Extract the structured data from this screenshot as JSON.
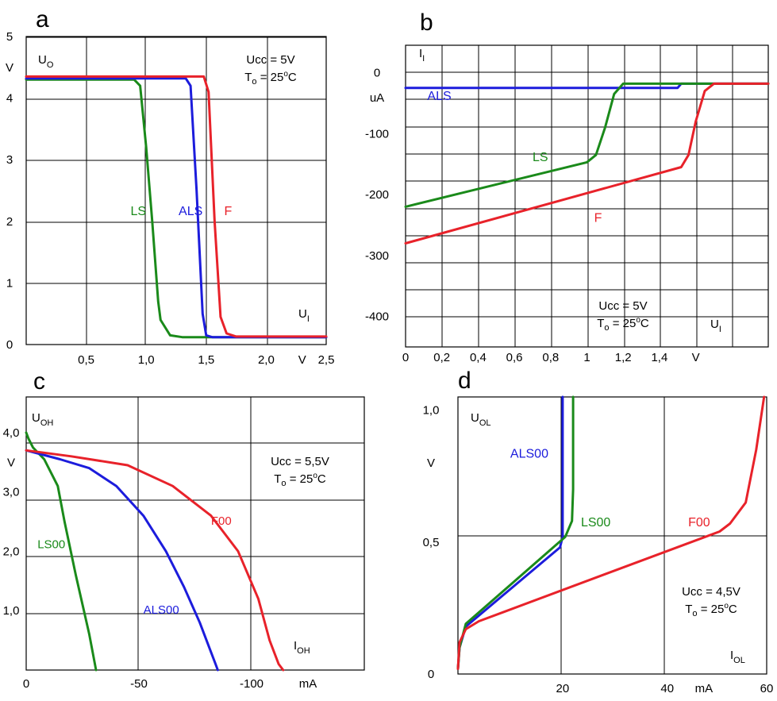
{
  "panels": {
    "a": {
      "letter": "a"
    },
    "b": {
      "letter": "b"
    },
    "c": {
      "letter": "c"
    },
    "d": {
      "letter": "d"
    }
  },
  "colors": {
    "LS": "#1a8a1a",
    "ALS": "#1c1cdc",
    "F": "#e8222a"
  },
  "chart_data": [
    {
      "id": "a",
      "type": "line",
      "ylabel": "U",
      "ylabel_sub": "O",
      "yunit": "V",
      "xlabel": "U",
      "xlabel_sub": "I",
      "xunit": "V",
      "conditions": [
        "Ucc = 5V",
        "T",
        "o",
        " = 25",
        "o",
        "C"
      ],
      "xlim": [
        0,
        2.5
      ],
      "ylim": [
        0,
        5
      ],
      "x_ticks": [
        "0,5",
        "1,0",
        "1,5",
        "2,0",
        "V",
        "2,5"
      ],
      "x_tick_values": [
        0.5,
        1.0,
        1.5,
        2.0,
        2.3,
        2.5
      ],
      "y_ticks": [
        "0",
        "1",
        "2",
        "3",
        "4",
        "V",
        "5"
      ],
      "y_tick_values": [
        0,
        1,
        2,
        3,
        4,
        4.5,
        5
      ],
      "grid": true,
      "series": [
        {
          "name": "LS",
          "color_key": "LS",
          "points": [
            [
              0,
              4.3
            ],
            [
              0.9,
              4.3
            ],
            [
              0.95,
              4.2
            ],
            [
              1.0,
              3.2
            ],
            [
              1.05,
              2.0
            ],
            [
              1.1,
              0.7
            ],
            [
              1.12,
              0.4
            ],
            [
              1.2,
              0.15
            ],
            [
              1.3,
              0.12
            ],
            [
              2.5,
              0.12
            ]
          ]
        },
        {
          "name": "ALS",
          "color_key": "ALS",
          "points": [
            [
              0,
              4.32
            ],
            [
              1.33,
              4.32
            ],
            [
              1.37,
              4.2
            ],
            [
              1.42,
              2.5
            ],
            [
              1.47,
              0.5
            ],
            [
              1.5,
              0.15
            ],
            [
              1.55,
              0.12
            ],
            [
              2.5,
              0.12
            ]
          ]
        },
        {
          "name": "F",
          "color_key": "F",
          "points": [
            [
              0,
              4.35
            ],
            [
              1.48,
              4.35
            ],
            [
              1.52,
              4.1
            ],
            [
              1.57,
              2.0
            ],
            [
              1.62,
              0.45
            ],
            [
              1.67,
              0.18
            ],
            [
              1.75,
              0.13
            ],
            [
              2.5,
              0.13
            ]
          ]
        }
      ],
      "labels": [
        {
          "text": "LS",
          "color_key": "LS",
          "x": 0.87,
          "y": 2.1
        },
        {
          "text": "ALS",
          "color_key": "ALS",
          "x": 1.27,
          "y": 2.1
        },
        {
          "text": "F",
          "color_key": "F",
          "x": 1.65,
          "y": 2.1
        }
      ]
    },
    {
      "id": "b",
      "type": "line",
      "ylabel": "I",
      "ylabel_sub": "I",
      "yunit": "uA",
      "xlabel": "U",
      "xlabel_sub": "I",
      "xunit": "V",
      "conditions": [
        "Ucc = 5V",
        "T",
        "o",
        " = 25",
        "o",
        "C"
      ],
      "xlim": [
        0,
        2.0
      ],
      "ylim": [
        -450,
        45
      ],
      "x_ticks": [
        "0",
        "0,2",
        "0,4",
        "0,6",
        "0,8",
        "1",
        "1,2",
        "1,4",
        "V"
      ],
      "x_tick_values": [
        0,
        0.2,
        0.4,
        0.6,
        0.8,
        1.0,
        1.2,
        1.4,
        1.6
      ],
      "y_ticks": [
        "0",
        "-100",
        "-200",
        "-300",
        "-400"
      ],
      "y_tick_values": [
        0,
        -100,
        -200,
        -300,
        -400
      ],
      "grid": true,
      "series": [
        {
          "name": "ALS",
          "color_key": "ALS",
          "points": [
            [
              0,
              -25
            ],
            [
              1.5,
              -25
            ],
            [
              1.52,
              -18
            ],
            [
              2.0,
              -18
            ]
          ]
        },
        {
          "name": "LS",
          "color_key": "LS",
          "points": [
            [
              0,
              -220
            ],
            [
              1.0,
              -147
            ],
            [
              1.05,
              -135
            ],
            [
              1.1,
              -90
            ],
            [
              1.15,
              -35
            ],
            [
              1.2,
              -18
            ],
            [
              2.0,
              -18
            ]
          ]
        },
        {
          "name": "F",
          "color_key": "F",
          "points": [
            [
              0,
              -280
            ],
            [
              1.52,
              -155
            ],
            [
              1.56,
              -135
            ],
            [
              1.6,
              -80
            ],
            [
              1.65,
              -30
            ],
            [
              1.7,
              -18
            ],
            [
              2.0,
              -18
            ]
          ]
        }
      ],
      "labels": [
        {
          "text": "ALS",
          "color_key": "ALS",
          "x": 0.12,
          "y": -45
        },
        {
          "text": "LS",
          "color_key": "LS",
          "x": 0.7,
          "y": -145
        },
        {
          "text": "F",
          "color_key": "F",
          "x": 1.04,
          "y": -245
        }
      ]
    },
    {
      "id": "c",
      "type": "line",
      "ylabel": "U",
      "ylabel_sub": "OH",
      "yunit": "V",
      "xlabel": "I",
      "xlabel_sub": "OH",
      "xunit": "mA",
      "conditions": [
        "Ucc = 5,5V",
        "T",
        "o",
        " = 25",
        "o",
        "C"
      ],
      "xlim": [
        0,
        -150
      ],
      "ylim": [
        0,
        4.6
      ],
      "x_ticks": [
        "0",
        "-50",
        "-100",
        "mA"
      ],
      "x_tick_values": [
        0,
        -50,
        -100,
        -125
      ],
      "y_ticks": [
        "1,0",
        "2,0",
        "3,0",
        "V",
        "4,0"
      ],
      "y_tick_values": [
        1,
        2,
        3,
        3.5,
        4
      ],
      "grid": true,
      "series": [
        {
          "name": "LS00",
          "color_key": "LS",
          "points": [
            [
              0,
              4.0
            ],
            [
              -1,
              3.9
            ],
            [
              -3,
              3.75
            ],
            [
              -8,
              3.55
            ],
            [
              -14,
              3.1
            ],
            [
              -17,
              2.5
            ],
            [
              -22,
              1.6
            ],
            [
              -28,
              0.6
            ],
            [
              -31,
              0
            ]
          ]
        },
        {
          "name": "ALS00",
          "color_key": "ALS",
          "points": [
            [
              0,
              3.7
            ],
            [
              -5,
              3.65
            ],
            [
              -15,
              3.55
            ],
            [
              -28,
              3.4
            ],
            [
              -40,
              3.1
            ],
            [
              -52,
              2.6
            ],
            [
              -62,
              2.0
            ],
            [
              -70,
              1.4
            ],
            [
              -77,
              0.8
            ],
            [
              -84,
              0.1
            ],
            [
              -85,
              0
            ]
          ]
        },
        {
          "name": "F00",
          "color_key": "F",
          "points": [
            [
              0,
              3.7
            ],
            [
              -20,
              3.6
            ],
            [
              -45,
              3.45
            ],
            [
              -65,
              3.1
            ],
            [
              -82,
              2.6
            ],
            [
              -94,
              2.0
            ],
            [
              -103,
              1.2
            ],
            [
              -108,
              0.5
            ],
            [
              -112,
              0.1
            ],
            [
              -114,
              0
            ]
          ]
        }
      ],
      "labels": [
        {
          "text": "LS00",
          "color_key": "LS",
          "x": -5,
          "y": 2.05
        },
        {
          "text": "ALS00",
          "color_key": "ALS",
          "x": -52,
          "y": 0.95
        },
        {
          "text": "F00",
          "color_key": "F",
          "x": -82,
          "y": 2.45
        }
      ]
    },
    {
      "id": "d",
      "type": "line",
      "ylabel": "U",
      "ylabel_sub": "OL",
      "yunit": "V",
      "xlabel": "I",
      "xlabel_sub": "OL",
      "xunit": "mA",
      "conditions": [
        "Ucc = 4,5V",
        "T",
        "o",
        " = 25",
        "o",
        "C"
      ],
      "xlim": [
        0,
        59
      ],
      "ylim": [
        0,
        1.05
      ],
      "x_ticks": [
        "20",
        "40",
        "mA",
        "60"
      ],
      "x_tick_values": [
        20,
        40,
        47,
        59
      ],
      "y_ticks": [
        "0",
        "0,5",
        "V",
        "1,0"
      ],
      "y_tick_values": [
        0,
        0.5,
        0.8,
        1.0
      ],
      "grid": true,
      "series": [
        {
          "name": "ALS00",
          "color_key": "ALS",
          "points": [
            [
              0,
              0.02
            ],
            [
              0.3,
              0.1
            ],
            [
              1.5,
              0.18
            ],
            [
              19.5,
              0.48
            ],
            [
              20,
              0.52
            ],
            [
              20,
              1.05
            ]
          ]
        },
        {
          "name": "LS00",
          "color_key": "LS",
          "points": [
            [
              0,
              0.02
            ],
            [
              0.3,
              0.1
            ],
            [
              1.5,
              0.19
            ],
            [
              20.5,
              0.52
            ],
            [
              21.8,
              0.58
            ],
            [
              22,
              0.7
            ],
            [
              22,
              1.05
            ]
          ]
        },
        {
          "name": "F00",
          "color_key": "F",
          "points": [
            [
              0,
              0.02
            ],
            [
              0.3,
              0.12
            ],
            [
              1.5,
              0.17
            ],
            [
              4,
              0.2
            ],
            [
              50,
              0.54
            ],
            [
              52,
              0.57
            ],
            [
              55,
              0.65
            ],
            [
              57,
              0.85
            ],
            [
              58.5,
              1.05
            ]
          ]
        }
      ],
      "labels": [
        {
          "text": "ALS00",
          "color_key": "ALS",
          "x": 10,
          "y": 0.82
        },
        {
          "text": "LS00",
          "color_key": "LS",
          "x": 23.5,
          "y": 0.56
        },
        {
          "text": "F00",
          "color_key": "F",
          "x": 44,
          "y": 0.56
        }
      ]
    }
  ]
}
